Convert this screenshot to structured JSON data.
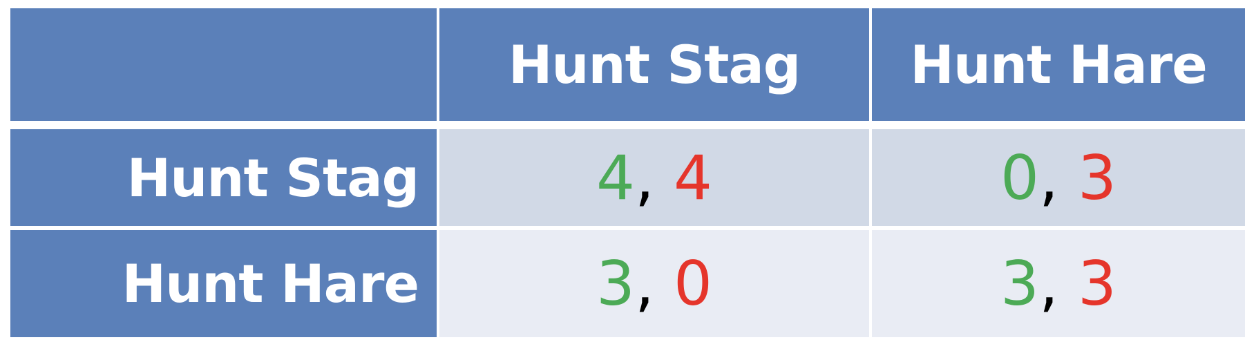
{
  "colors": {
    "header_bg": "#5b80b9",
    "header_text": "#ffffff",
    "row1_bg": "#d1d9e6",
    "row2_bg": "#e9ecf4",
    "player1": "#4caa56",
    "player2": "#e5352b"
  },
  "table": {
    "corner": "",
    "columns": [
      "Hunt Stag",
      "Hunt Hare"
    ],
    "rows": [
      {
        "label": "Hunt Stag",
        "cells": [
          {
            "p1": "4",
            "sep": ",",
            "p2": "4"
          },
          {
            "p1": "0",
            "sep": ",",
            "p2": "3"
          }
        ]
      },
      {
        "label": "Hunt Hare",
        "cells": [
          {
            "p1": "3",
            "sep": ",",
            "p2": "0"
          },
          {
            "p1": "3",
            "sep": ",",
            "p2": "3"
          }
        ]
      }
    ]
  }
}
